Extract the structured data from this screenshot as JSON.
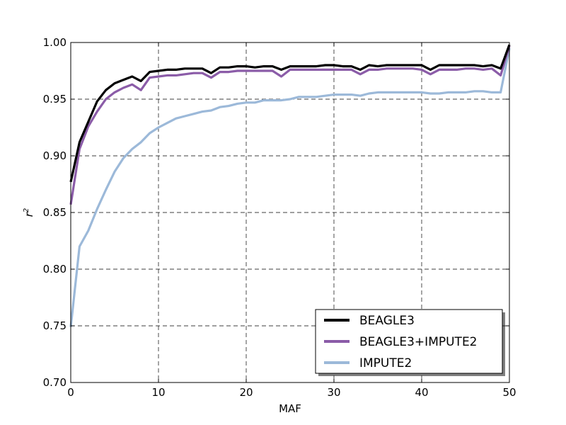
{
  "chart_data": {
    "type": "line",
    "title": "",
    "xlabel": "MAF",
    "ylabel": "r",
    "ylabel_superscript": "2",
    "xlim": [
      0,
      50
    ],
    "ylim": [
      0.7,
      1.0
    ],
    "xticks": [
      0,
      10,
      20,
      30,
      40,
      50
    ],
    "xtick_labels": [
      "0",
      "10",
      "20",
      "30",
      "40",
      "50"
    ],
    "yticks": [
      0.7,
      0.75,
      0.8,
      0.85,
      0.9,
      0.95,
      1.0
    ],
    "ytick_labels": [
      "0.70",
      "0.75",
      "0.80",
      "0.85",
      "0.90",
      "0.95",
      "1.00"
    ],
    "grid": true,
    "legend_position": "lower-right",
    "x": [
      0,
      1,
      2,
      3,
      4,
      5,
      6,
      7,
      8,
      9,
      10,
      11,
      12,
      13,
      14,
      15,
      16,
      17,
      18,
      19,
      20,
      21,
      22,
      23,
      24,
      25,
      26,
      27,
      28,
      29,
      30,
      31,
      32,
      33,
      34,
      35,
      36,
      37,
      38,
      39,
      40,
      41,
      42,
      43,
      44,
      45,
      46,
      47,
      48,
      49,
      50
    ],
    "series": [
      {
        "name": "BEAGLE3",
        "color": "#000000",
        "values": [
          0.877,
          0.912,
          0.93,
          0.948,
          0.958,
          0.964,
          0.967,
          0.97,
          0.966,
          0.974,
          0.975,
          0.976,
          0.976,
          0.977,
          0.977,
          0.977,
          0.973,
          0.978,
          0.978,
          0.979,
          0.979,
          0.978,
          0.979,
          0.979,
          0.976,
          0.979,
          0.979,
          0.979,
          0.979,
          0.98,
          0.98,
          0.979,
          0.979,
          0.976,
          0.98,
          0.979,
          0.98,
          0.98,
          0.98,
          0.98,
          0.98,
          0.976,
          0.98,
          0.98,
          0.98,
          0.98,
          0.98,
          0.979,
          0.98,
          0.977,
          0.998
        ]
      },
      {
        "name": "BEAGLE3+IMPUTE2",
        "color": "#8b5ca8",
        "values": [
          0.857,
          0.906,
          0.926,
          0.939,
          0.95,
          0.956,
          0.96,
          0.963,
          0.958,
          0.969,
          0.97,
          0.971,
          0.971,
          0.972,
          0.973,
          0.973,
          0.969,
          0.974,
          0.974,
          0.975,
          0.975,
          0.975,
          0.975,
          0.975,
          0.97,
          0.976,
          0.976,
          0.976,
          0.976,
          0.976,
          0.976,
          0.976,
          0.976,
          0.972,
          0.976,
          0.976,
          0.977,
          0.977,
          0.977,
          0.977,
          0.976,
          0.972,
          0.976,
          0.976,
          0.976,
          0.977,
          0.977,
          0.976,
          0.977,
          0.971,
          0.997
        ]
      },
      {
        "name": "IMPUTE2",
        "color": "#9cb9d9",
        "values": [
          0.749,
          0.82,
          0.834,
          0.853,
          0.87,
          0.886,
          0.898,
          0.906,
          0.912,
          0.92,
          0.925,
          0.929,
          0.933,
          0.935,
          0.937,
          0.939,
          0.94,
          0.943,
          0.944,
          0.946,
          0.947,
          0.947,
          0.949,
          0.949,
          0.949,
          0.95,
          0.952,
          0.952,
          0.952,
          0.953,
          0.954,
          0.954,
          0.954,
          0.953,
          0.955,
          0.956,
          0.956,
          0.956,
          0.956,
          0.956,
          0.956,
          0.955,
          0.955,
          0.956,
          0.956,
          0.956,
          0.957,
          0.957,
          0.956,
          0.956,
          0.995
        ]
      }
    ]
  }
}
